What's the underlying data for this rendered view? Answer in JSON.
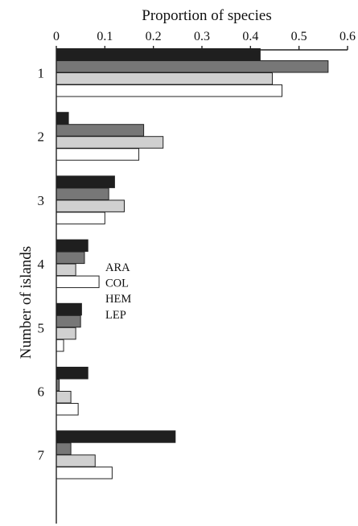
{
  "chart_data": {
    "type": "bar",
    "orientation": "horizontal",
    "xlabel": "Proportion of species",
    "ylabel": "Number of islands",
    "xlim": [
      0,
      0.6
    ],
    "xticks": [
      "0",
      "0.1",
      "0.2",
      "0.3",
      "0.4",
      "0.5",
      "0.6"
    ],
    "xaxis_position": "top",
    "categories": [
      "1",
      "2",
      "3",
      "4",
      "5",
      "6",
      "7"
    ],
    "series": [
      {
        "name": "ARA",
        "color": "#1f1f1f",
        "values": [
          0.42,
          0.025,
          0.12,
          0.065,
          0.052,
          0.065,
          0.245
        ]
      },
      {
        "name": "COL",
        "color": "#777777",
        "values": [
          0.56,
          0.18,
          0.108,
          0.058,
          0.05,
          0.006,
          0.03
        ]
      },
      {
        "name": "HEM",
        "color": "#d0d0d0",
        "values": [
          0.445,
          0.22,
          0.14,
          0.04,
          0.04,
          0.03,
          0.08
        ]
      },
      {
        "name": "LEP",
        "color": "#ffffff",
        "values": [
          0.465,
          0.17,
          0.1,
          0.088,
          0.015,
          0.045,
          0.115
        ]
      }
    ],
    "legend": "inline",
    "grid": false
  }
}
